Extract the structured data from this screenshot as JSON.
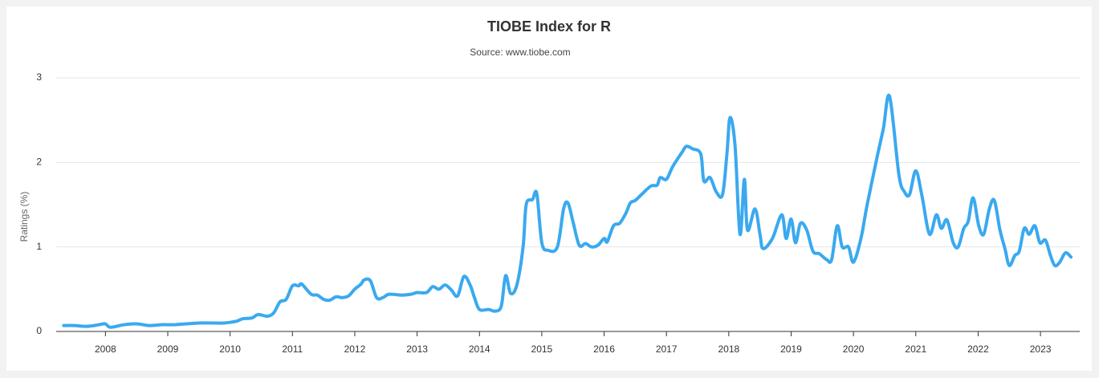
{
  "chart_data": {
    "type": "line",
    "title": "TIOBE Index for R",
    "subtitle": "Source: www.tiobe.com",
    "y_label": "Ratings (%)",
    "x": [
      2007.33,
      2007.5,
      2007.7,
      2007.9,
      2008.0,
      2008.08,
      2008.3,
      2008.5,
      2008.7,
      2008.9,
      2009.1,
      2009.3,
      2009.5,
      2009.7,
      2009.9,
      2010.1,
      2010.2,
      2010.35,
      2010.45,
      2010.6,
      2010.7,
      2010.8,
      2010.9,
      2011.0,
      2011.1,
      2011.15,
      2011.3,
      2011.4,
      2011.5,
      2011.6,
      2011.7,
      2011.8,
      2011.9,
      2012.0,
      2012.1,
      2012.15,
      2012.25,
      2012.35,
      2012.45,
      2012.55,
      2012.75,
      2012.9,
      2013.0,
      2013.15,
      2013.25,
      2013.35,
      2013.45,
      2013.55,
      2013.65,
      2013.75,
      2013.85,
      2013.92,
      2014.0,
      2014.15,
      2014.25,
      2014.35,
      2014.42,
      2014.5,
      2014.6,
      2014.7,
      2014.75,
      2014.85,
      2014.92,
      2015.0,
      2015.1,
      2015.25,
      2015.35,
      2015.42,
      2015.5,
      2015.6,
      2015.7,
      2015.8,
      2015.9,
      2016.0,
      2016.05,
      2016.15,
      2016.25,
      2016.35,
      2016.42,
      2016.5,
      2016.6,
      2016.75,
      2016.85,
      2016.9,
      2017.0,
      2017.1,
      2017.25,
      2017.32,
      2017.42,
      2017.55,
      2017.6,
      2017.7,
      2017.8,
      2017.9,
      2017.97,
      2018.02,
      2018.1,
      2018.18,
      2018.25,
      2018.3,
      2018.42,
      2018.5,
      2018.55,
      2018.7,
      2018.85,
      2018.92,
      2019.0,
      2019.07,
      2019.15,
      2019.25,
      2019.35,
      2019.45,
      2019.57,
      2019.65,
      2019.74,
      2019.82,
      2019.92,
      2020.0,
      2020.12,
      2020.22,
      2020.39,
      2020.48,
      2020.58,
      2020.73,
      2020.82,
      2020.9,
      2021.0,
      2021.1,
      2021.22,
      2021.33,
      2021.41,
      2021.5,
      2021.6,
      2021.68,
      2021.77,
      2021.84,
      2021.92,
      2022.01,
      2022.09,
      2022.18,
      2022.26,
      2022.35,
      2022.43,
      2022.5,
      2022.59,
      2022.66,
      2022.74,
      2022.82,
      2022.91,
      2022.99,
      2023.08,
      2023.16,
      2023.23,
      2023.31,
      2023.4,
      2023.49
    ],
    "series": [
      {
        "name": "R",
        "color": "#3aa9f0",
        "values": [
          0.07,
          0.07,
          0.06,
          0.08,
          0.09,
          0.05,
          0.08,
          0.09,
          0.07,
          0.08,
          0.08,
          0.09,
          0.1,
          0.1,
          0.1,
          0.12,
          0.15,
          0.16,
          0.2,
          0.18,
          0.22,
          0.35,
          0.38,
          0.54,
          0.54,
          0.56,
          0.44,
          0.43,
          0.38,
          0.37,
          0.41,
          0.4,
          0.42,
          0.5,
          0.56,
          0.61,
          0.6,
          0.4,
          0.4,
          0.44,
          0.43,
          0.44,
          0.46,
          0.46,
          0.53,
          0.5,
          0.55,
          0.49,
          0.42,
          0.65,
          0.55,
          0.4,
          0.26,
          0.26,
          0.24,
          0.3,
          0.66,
          0.45,
          0.55,
          1.0,
          1.5,
          1.56,
          1.63,
          1.05,
          0.96,
          1.0,
          1.45,
          1.52,
          1.3,
          1.02,
          1.04,
          1.0,
          1.02,
          1.1,
          1.06,
          1.25,
          1.28,
          1.4,
          1.52,
          1.55,
          1.62,
          1.72,
          1.73,
          1.82,
          1.8,
          1.95,
          2.12,
          2.19,
          2.16,
          2.1,
          1.78,
          1.82,
          1.65,
          1.62,
          2.1,
          2.53,
          2.2,
          1.15,
          1.8,
          1.2,
          1.45,
          1.15,
          0.98,
          1.1,
          1.38,
          1.1,
          1.33,
          1.05,
          1.28,
          1.2,
          0.95,
          0.92,
          0.85,
          0.85,
          1.25,
          1.0,
          1.0,
          0.82,
          1.1,
          1.5,
          2.1,
          2.4,
          2.78,
          1.85,
          1.65,
          1.62,
          1.9,
          1.6,
          1.15,
          1.38,
          1.22,
          1.32,
          1.05,
          1.0,
          1.22,
          1.3,
          1.58,
          1.25,
          1.15,
          1.45,
          1.55,
          1.2,
          0.98,
          0.78,
          0.9,
          0.95,
          1.22,
          1.15,
          1.25,
          1.05,
          1.08,
          0.9,
          0.78,
          0.82,
          0.93,
          0.88
        ]
      }
    ],
    "xlim": [
      2007.21,
      2023.63
    ],
    "xticks": [
      2008,
      2009,
      2010,
      2011,
      2012,
      2013,
      2014,
      2015,
      2016,
      2017,
      2018,
      2019,
      2020,
      2021,
      2022,
      2023
    ],
    "ylim": [
      0,
      3
    ],
    "yticks": [
      0,
      1,
      2,
      3
    ],
    "grid": true
  }
}
